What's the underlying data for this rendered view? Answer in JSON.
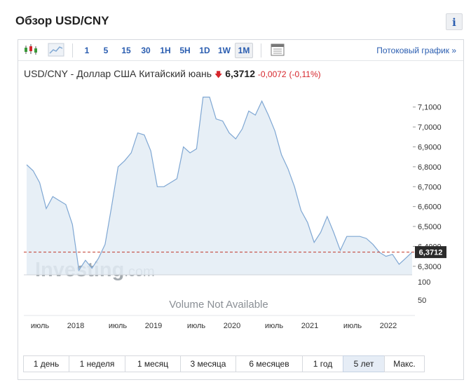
{
  "header": {
    "title": "Обзор USD/CNY",
    "info_label": "i"
  },
  "toolbar": {
    "icons": [
      "candlestick-icon",
      "area-chart-icon",
      "calendar-icon"
    ],
    "timeframes": [
      "1",
      "5",
      "15",
      "30",
      "1H",
      "5H",
      "1D",
      "1W",
      "1M"
    ],
    "active_timeframe": "1M",
    "streaming_link": "Потоковый график »"
  },
  "quote": {
    "name": "USD/CNY - Доллар США Китайский юань",
    "direction": "down",
    "arrow": "🡇",
    "price": "6,3712",
    "change": "-0,0072",
    "change_pct": "(-0,11%)"
  },
  "watermark": {
    "brand": "Investing",
    "suffix": ".com"
  },
  "volume_text": "Volume Not Available",
  "ranges": [
    "1 день",
    "1 неделя",
    "1 месяц",
    "3 месяца",
    "6 месяцев",
    "1 год",
    "5 лет",
    "Макс."
  ],
  "active_range": "5 лет",
  "colors": {
    "line": "#7fa7d3",
    "fill": "#e3ecf5",
    "accent": "#2a5db0",
    "down": "#d6262c",
    "price_tag": "#2b2b2b"
  },
  "chart_data": {
    "type": "area",
    "series": [
      {
        "values": [
          6.81,
          6.78,
          6.72,
          6.59,
          6.65,
          6.63,
          6.61,
          6.51,
          6.28,
          6.33,
          6.29,
          6.34,
          6.41,
          6.6,
          6.8,
          6.83,
          6.87,
          6.97,
          6.96,
          6.88,
          6.7,
          6.7,
          6.72,
          6.74,
          6.9,
          6.87,
          6.89,
          7.15,
          7.15,
          7.04,
          7.03,
          6.97,
          6.94,
          6.99,
          7.08,
          7.06,
          7.13,
          7.06,
          6.98,
          6.86,
          6.79,
          6.7,
          6.58,
          6.52,
          6.42,
          6.47,
          6.55,
          6.47,
          6.38,
          6.45,
          6.45,
          6.45,
          6.44,
          6.41,
          6.37,
          6.35,
          6.36,
          6.31,
          6.34,
          6.3712
        ]
      }
    ],
    "x_ticks": [
      "июль",
      "2018",
      "июль",
      "2019",
      "июль",
      "2020",
      "июль",
      "2021",
      "июль",
      "2022"
    ],
    "y_ticks": [
      "7,1000",
      "7,0000",
      "6,9000",
      "6,8000",
      "6,7000",
      "6,6000",
      "6,5000",
      "6,4000",
      "6,3000"
    ],
    "ylim": [
      6.257,
      7.18
    ],
    "volume_ticks": [
      "100",
      "50"
    ],
    "last_value": 6.3712,
    "last_label": "6,3712",
    "grid": false
  }
}
